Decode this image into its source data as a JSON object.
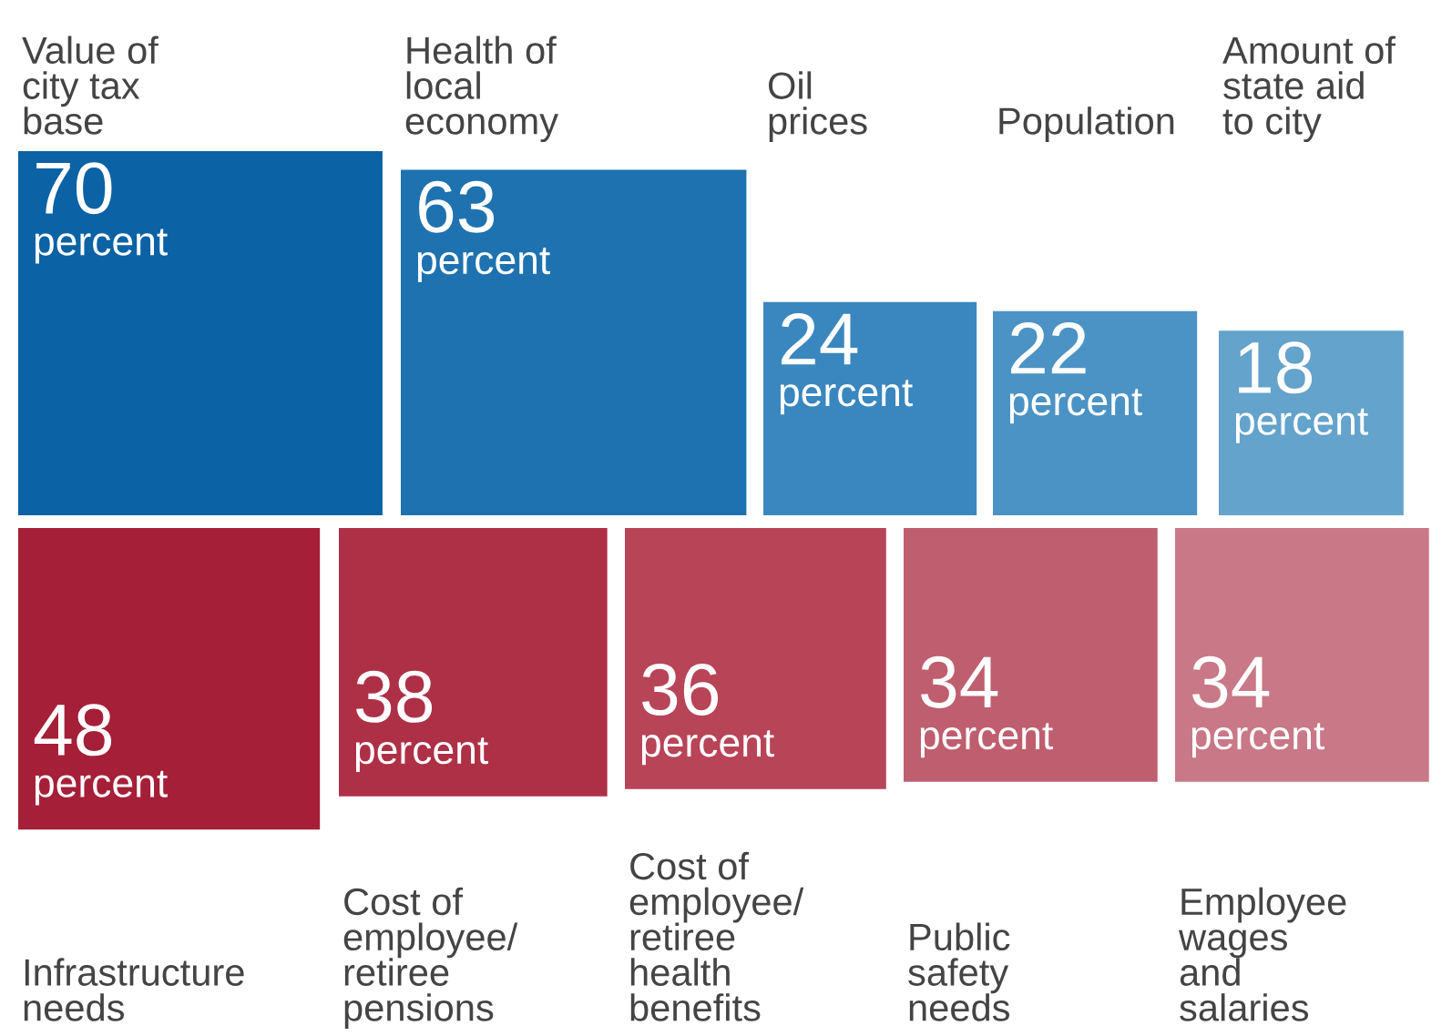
{
  "chart_data": [
    {
      "type": "other",
      "categories": [
        "Value of\ncity tax\nbase",
        "Health of\nlocal\neconomy",
        "Oil\nprices",
        "Population",
        "Amount of\nstate aid\nto city"
      ],
      "values": [
        70,
        63,
        24,
        22,
        18
      ],
      "value_labels": [
        "70\npercent",
        "63\npercent",
        "24\npercent",
        "22\npercent",
        "18\npercent"
      ],
      "colors": [
        "#0b62a4",
        "#1f72b0",
        "#3a87bf",
        "#4b93c4",
        "#64a3cb"
      ]
    },
    {
      "type": "other",
      "categories": [
        "Infrastructure\nneeds",
        "Cost of\nemployee/\nretiree\npensions",
        "Cost of\nemployee/\nretiree\nhealth\nbenefits",
        "Public\nsafety\nneeds",
        "Employee\nwages\nand\nsalaries"
      ],
      "values": [
        48,
        38,
        36,
        34,
        34
      ],
      "value_labels": [
        "48\npercent",
        "38\npercent",
        "36\npercent",
        "34\npercent",
        "34\npercent"
      ],
      "colors": [
        "#a51f38",
        "#ae3047",
        "#b84458",
        "#bf5e6e",
        "#c87886"
      ]
    }
  ]
}
